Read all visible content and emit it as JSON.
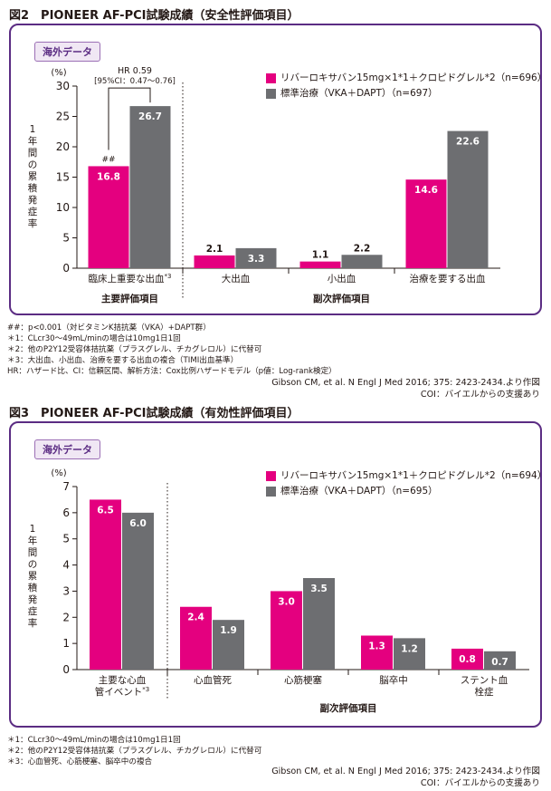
{
  "colors": {
    "rivaroxaban": "#e4007f",
    "standard": "#6d6e71",
    "frame": "#5b2c83",
    "badge_bg": "#f0e7f4"
  },
  "figure2": {
    "title": "図2　PIONEER AF-PCI試験成績（安全性評価項目）",
    "badge": "海外データ",
    "legend": [
      {
        "label": "リバーロキサバン15mg×1*1＋クロピドグレル*2（n=696）",
        "color": "#e4007f"
      },
      {
        "label": "標準治療（VKA＋DAPT）（n=697）",
        "color": "#6d6e71"
      }
    ],
    "hr_text": [
      "HR 0.59",
      "[95%CI：0.47～0.76]"
    ],
    "sig_mark": "##",
    "groups": [
      {
        "label": "主要評価項目",
        "from": 0,
        "to": 0
      },
      {
        "label": "副次評価項目",
        "from": 1,
        "to": 3
      }
    ],
    "notes": [
      "##：p<0.001（対ビタミンK拮抗薬（VKA）+DAPT群）",
      "＊1：CLcr30～49mL/minの場合は10mg1日1回",
      "＊2：他のP2Y12受容体拮抗薬（プラスグレル、チカグレロル）に代替可",
      "＊3：大出血、小出血、治療を要する出血の複合（TIMI出血基準）",
      "HR：ハザード比、CI：信頼区間、解析方法：Cox比例ハザードモデル（p値：Log-rank検定）"
    ],
    "citation": [
      "Gibson CM, et al. N Engl J Med 2016; 375: 2423-2434.より作図",
      "COI：バイエルからの支援あり"
    ]
  },
  "figure3": {
    "title": "図3　PIONEER AF-PCI試験成績（有効性評価項目）",
    "badge": "海外データ",
    "legend": [
      {
        "label": "リバーロキサバン15mg×1*1＋クロピドグレル*2（n=694）",
        "color": "#e4007f"
      },
      {
        "label": "標準治療（VKA＋DAPT）（n=695）",
        "color": "#6d6e71"
      }
    ],
    "groups": [
      {
        "label": "副次評価項目",
        "from": 1,
        "to": 4
      }
    ],
    "notes": [
      "＊1：CLcr30～49mL/minの場合は10mg1日1回",
      "＊2：他のP2Y12受容体拮抗薬（プラスグレル、チカグレロル）に代替可",
      "＊3：心血管死、心筋梗塞、脳卒中の複合"
    ],
    "citation": [
      "Gibson CM, et al. N Engl J Med 2016; 375: 2423-2434.より作図",
      "COI：バイエルからの支援あり"
    ]
  },
  "chart_data": [
    {
      "type": "bar",
      "title": "図2　PIONEER AF-PCI試験成績（安全性評価項目）",
      "ylabel": "1年間の累積発症率",
      "yunit": "(%)",
      "ylim": [
        0,
        30
      ],
      "yticks": [
        0,
        5,
        10,
        15,
        20,
        25,
        30
      ],
      "grid": false,
      "legend_position": "top-right",
      "categories": [
        "臨床上重要な出血*3",
        "大出血",
        "小出血",
        "治療を要する出血"
      ],
      "series": [
        {
          "name": "リバーロキサバン15mg×1*1＋クロピドグレル*2（n=696）",
          "values": [
            16.8,
            2.1,
            1.1,
            14.6
          ]
        },
        {
          "name": "標準治療（VKA＋DAPT）（n=697）",
          "values": [
            26.7,
            3.3,
            2.2,
            22.6
          ]
        }
      ]
    },
    {
      "type": "bar",
      "title": "図3　PIONEER AF-PCI試験成績（有効性評価項目）",
      "ylabel": "1年間の累積発症率",
      "yunit": "(%)",
      "ylim": [
        0,
        7
      ],
      "yticks": [
        0,
        1,
        2,
        3,
        4,
        5,
        6,
        7
      ],
      "grid": false,
      "legend_position": "top-right",
      "categories": [
        "主要な心血管イベント*3",
        "心血管死",
        "心筋梗塞",
        "脳卒中",
        "ステント血栓症"
      ],
      "series": [
        {
          "name": "リバーロキサバン15mg×1*1＋クロピドグレル*2（n=694）",
          "values": [
            6.5,
            2.4,
            3.0,
            1.3,
            0.8
          ]
        },
        {
          "name": "標準治療（VKA＋DAPT）（n=695）",
          "values": [
            6.0,
            1.9,
            3.5,
            1.2,
            0.7
          ]
        }
      ]
    }
  ]
}
